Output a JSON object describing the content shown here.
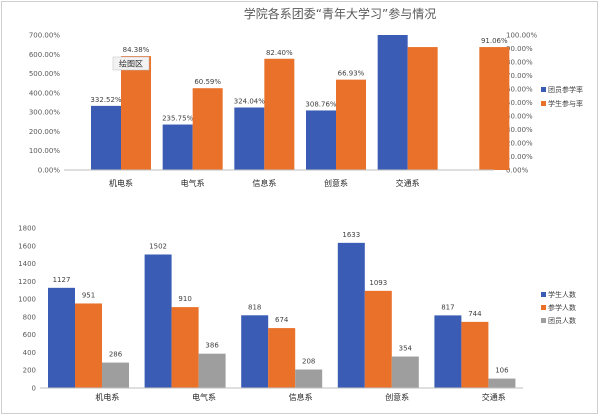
{
  "chart_data": [
    {
      "type": "bar",
      "title": "学院各系团委“青年大学习”参与情况",
      "categories": [
        "机电系",
        "电气系",
        "信息系",
        "创意系",
        "交通系",
        ""
      ],
      "series": [
        {
          "name": "团员参学率",
          "axis": "left",
          "color": "#3a5cb5",
          "values": [
            332.52,
            235.75,
            324.04,
            308.76,
            700.0,
            null
          ],
          "labels": [
            "332.52%",
            "235.75%",
            "324.04%",
            "308.76%",
            "",
            ""
          ]
        },
        {
          "name": "学生参与率",
          "axis": "right",
          "color": "#e9712a",
          "values": [
            84.38,
            60.59,
            82.4,
            66.93,
            91.06,
            91.06
          ],
          "labels": [
            "84.38%",
            "60.59%",
            "82.40%",
            "66.93%",
            "",
            "91.06%"
          ]
        }
      ],
      "left_axis": {
        "ylim": [
          0,
          700
        ],
        "ticks": [
          "0.00%",
          "100.00%",
          "200.00%",
          "300.00%",
          "400.00%",
          "500.00%",
          "600.00%",
          "700.00%"
        ]
      },
      "right_axis": {
        "ylim": [
          0,
          100
        ],
        "ticks": [
          "0.00%",
          "10.00%",
          "20.00%",
          "30.00%",
          "40.00%",
          "50.00%",
          "60.00%",
          "70.00%",
          "80.00%",
          "90.00%",
          "100.00%"
        ]
      },
      "legend": "right",
      "tooltip": "绘图区"
    },
    {
      "type": "bar",
      "title": "",
      "categories": [
        "机电系",
        "电气系",
        "信息系",
        "创意系",
        "交通系"
      ],
      "series": [
        {
          "name": "学生人数",
          "color": "#3a5cb5",
          "values": [
            1127,
            1502,
            818,
            1633,
            817
          ]
        },
        {
          "name": "参学人数",
          "color": "#e9712a",
          "values": [
            951,
            910,
            674,
            1093,
            744
          ]
        },
        {
          "name": "团员人数",
          "color": "#9e9e9e",
          "values": [
            286,
            386,
            208,
            354,
            106
          ]
        }
      ],
      "ylim": [
        0,
        1800
      ],
      "ticks": [
        "0",
        "200",
        "400",
        "600",
        "800",
        "1000",
        "1200",
        "1400",
        "1600",
        "1800"
      ],
      "legend": "right"
    }
  ]
}
